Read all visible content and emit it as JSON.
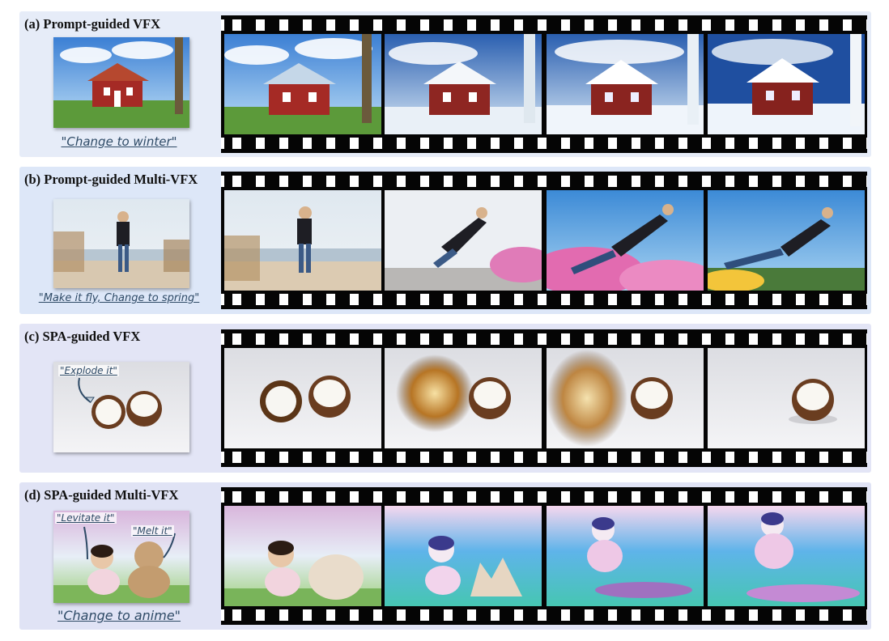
{
  "panels": [
    {
      "title": "(a) Prompt-guided VFX",
      "caption": "\"Change to winter\""
    },
    {
      "title": "(b) Prompt-guided Multi-VFX",
      "caption": "\"Make it fly, Change to spring\""
    },
    {
      "title": "(c) SPA-guided VFX",
      "inset_labels": [
        "\"Explode it\""
      ]
    },
    {
      "title": "(d) SPA-guided Multi-VFX",
      "inset_labels": [
        "\"Levitate it\"",
        "\"Melt it\""
      ],
      "caption": "\"Change to anime\""
    }
  ]
}
